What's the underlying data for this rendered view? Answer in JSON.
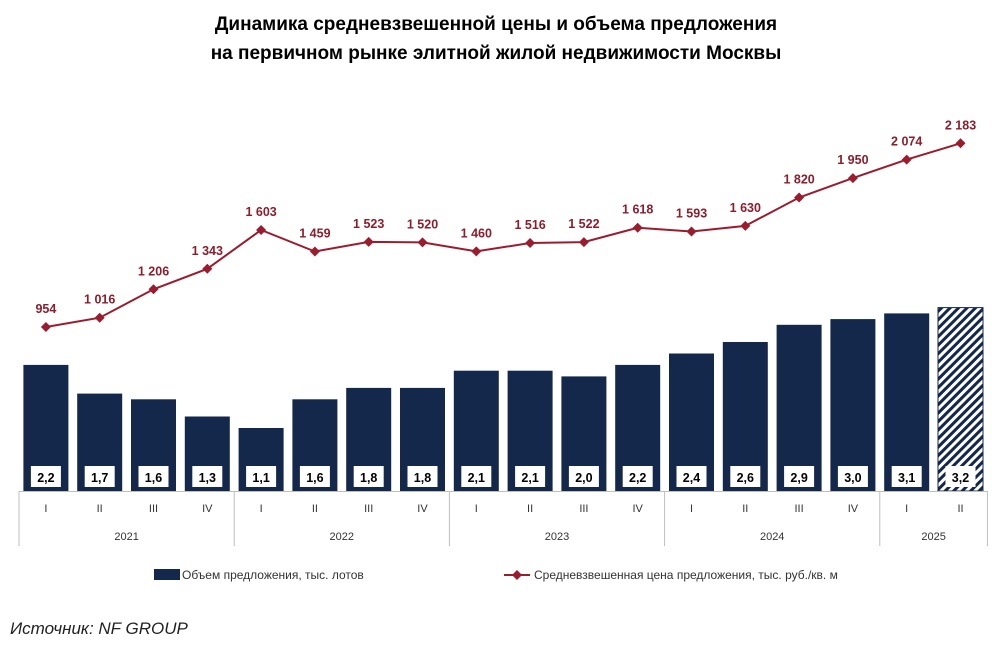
{
  "chart_data": {
    "type": "bar",
    "title_lines": [
      "Динамика средневзвешенной цены и объема предложения",
      "на первичном рынке элитной жилой недвижимости Москвы"
    ],
    "years": [
      {
        "label": "2021",
        "quarters": [
          "I",
          "II",
          "III",
          "IV"
        ]
      },
      {
        "label": "2022",
        "quarters": [
          "I",
          "II",
          "III",
          "IV"
        ]
      },
      {
        "label": "2023",
        "quarters": [
          "I",
          "II",
          "III",
          "IV"
        ]
      },
      {
        "label": "2024",
        "quarters": [
          "I",
          "II",
          "III",
          "IV"
        ]
      },
      {
        "label": "2025",
        "quarters": [
          "I",
          "II"
        ]
      }
    ],
    "series": [
      {
        "name": "Объем предложения, тыс. лотов",
        "kind": "bar",
        "color": "#14284b",
        "values": [
          2.2,
          1.7,
          1.6,
          1.3,
          1.1,
          1.6,
          1.8,
          1.8,
          2.1,
          2.1,
          2.0,
          2.2,
          2.4,
          2.6,
          2.9,
          3.0,
          3.1,
          3.2
        ],
        "display": [
          "2,2",
          "1,7",
          "1,6",
          "1,3",
          "1,1",
          "1,6",
          "1,8",
          "1,8",
          "2,1",
          "2,1",
          "2,0",
          "2,2",
          "2,4",
          "2,6",
          "2,9",
          "3,0",
          "3,1",
          "3,2"
        ],
        "hatched_last": true
      },
      {
        "name": "Средневзвешенная цена предложения, тыс. руб./кв. м",
        "kind": "line",
        "color": "#9b1c2e",
        "values": [
          954,
          1016,
          1206,
          1343,
          1603,
          1459,
          1523,
          1520,
          1460,
          1516,
          1522,
          1618,
          1593,
          1630,
          1820,
          1950,
          2074,
          2183
        ],
        "display": [
          "954",
          "1 016",
          "1 206",
          "1 343",
          "1 603",
          "1 459",
          "1 523",
          "1 520",
          "1 460",
          "1 516",
          "1 522",
          "1 618",
          "1 593",
          "1 630",
          "1 820",
          "1 950",
          "2 074",
          "2 183"
        ]
      }
    ],
    "source": "Источник: NF GROUP"
  }
}
